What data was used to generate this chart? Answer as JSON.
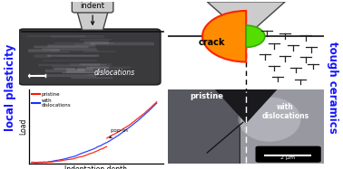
{
  "bg_color": "#ffffff",
  "blue_text_color": "#1515ff",
  "title_left": "local plasticity",
  "title_right": "tough ceramics",
  "indent_label": "indent",
  "dislocation_label": "dislocations",
  "crack_label": "crack",
  "pop_in_label": "pop-in",
  "pristine_label": "pristine",
  "with_dislocations_label": "with\ndislocations",
  "scale_bar_label": "2 μm",
  "xaxis_label": "Indentation depth",
  "yaxis_label": "Load",
  "legend_pristine": "pristine",
  "legend_with_dis": "with\ndislocations",
  "pristine_color": "#ff1500",
  "dislocation_color": "#1133ff",
  "crack_fill": "#ff8c00",
  "crack_edge": "#ff2200",
  "green_fill": "#55dd00",
  "green_edge": "#33aa00",
  "tem_dark": "#3a3a3c",
  "tem_mid": "#686870",
  "tem_light": "#909098",
  "micro_left": "#585860",
  "micro_right": "#9898a0",
  "indenter_fill": "#cccccc",
  "indenter_edge": "#444444"
}
